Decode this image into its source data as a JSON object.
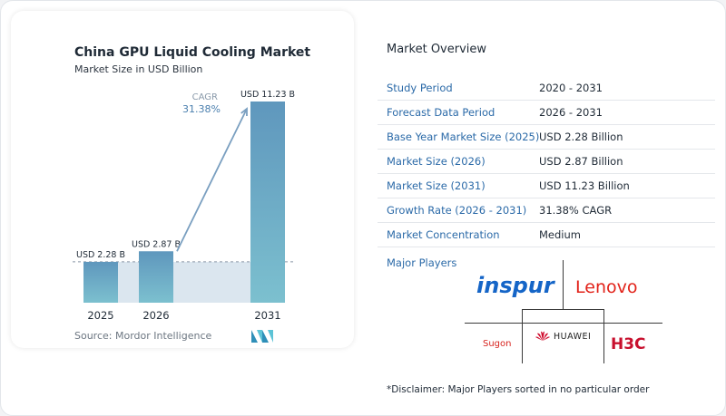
{
  "chart_data": {
    "type": "bar",
    "title": "China GPU Liquid Cooling Market",
    "subtitle": "Market Size in USD Billion",
    "categories": [
      "2025",
      "2026",
      "2031"
    ],
    "values": [
      2.28,
      2.87,
      11.23
    ],
    "data_labels": [
      "USD 2.28 B",
      "USD 2.87 B",
      "USD 11.23 B"
    ],
    "cagr_label": "CAGR",
    "cagr_value": "31.38%",
    "ylim": [
      0,
      11.23
    ],
    "grid": false,
    "colors": {
      "bar_top": "#5f97bd",
      "bar_bottom": "#7cc0cf",
      "band": "#dbe6ef",
      "arrow": "#7a9fc0",
      "baseline_dash": "#8a98a6"
    }
  },
  "source": "Source: Mordor Intelligence",
  "overview": {
    "title": "Market Overview",
    "rows": [
      {
        "label": "Study Period",
        "value": "2020 - 2031"
      },
      {
        "label": "Forecast Data Period",
        "value": "2026 - 2031"
      },
      {
        "label": "Base Year Market Size (2025)",
        "value": "USD 2.28 Billion"
      },
      {
        "label": "Market Size (2026)",
        "value": "USD 2.87 Billion"
      },
      {
        "label": "Market Size (2031)",
        "value": "USD 11.23 Billion"
      },
      {
        "label": "Growth Rate (2026 - 2031)",
        "value": "31.38% CAGR"
      },
      {
        "label": "Market Concentration",
        "value": "Medium"
      }
    ],
    "players_title": "Major Players",
    "players": {
      "inspur": "inspur",
      "lenovo": "Lenovo",
      "sugon": "Sugon",
      "huawei": "HUAWEI",
      "h3c": "H3C"
    },
    "disclaimer": "*Disclaimer: Major Players sorted in no particular order"
  }
}
